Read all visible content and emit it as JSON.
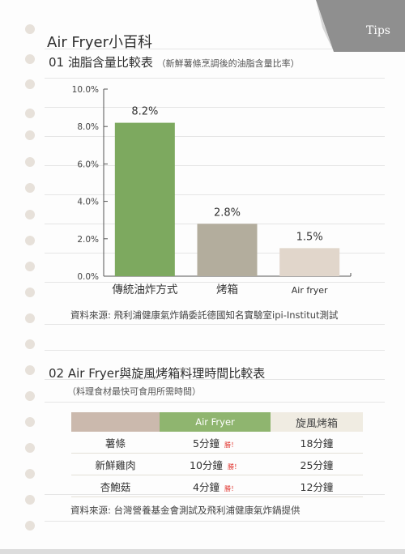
{
  "tips": "Tips",
  "title": "Air Fryer小百科",
  "section1": {
    "heading": "01 油脂含量比較表",
    "note": "（新鮮薯條烹調後的油脂含量比率）",
    "source": "資料來源: 飛利浦健康氣炸鍋委託德國知名實驗室ipi-Institut測試"
  },
  "section2": {
    "heading": "02 Air Fryer與旋風烤箱料理時間比較表",
    "note": "（料理食材最快可食用所需時間）",
    "source": "資料來源: 台灣營養基金會測試及飛利浦健康氣炸鍋提供"
  },
  "chart_data": {
    "type": "bar",
    "categories": [
      "傳統油炸方式",
      "烤箱",
      "Air fryer"
    ],
    "values": [
      8.2,
      2.8,
      1.5
    ],
    "value_labels": [
      "8.2%",
      "2.8%",
      "1.5%"
    ],
    "yticks": [
      "0.0%",
      "2.0%",
      "4.0%",
      "6.0%",
      "8.0%",
      "10.0%"
    ],
    "ylim": [
      0,
      10
    ],
    "colors": [
      "#7da95f",
      "#b3ad9d",
      "#e1d6cb"
    ],
    "grid": false
  },
  "table": {
    "headers": [
      "",
      "Air Fryer",
      "旋風烤箱"
    ],
    "win_label": "勝！",
    "rows": [
      {
        "item": "薯條",
        "airfryer": "5分鐘",
        "oven": "18分鐘"
      },
      {
        "item": "新鮮雞肉",
        "airfryer": "10分鐘",
        "oven": "25分鐘"
      },
      {
        "item": "杏鮑菇",
        "airfryer": "4分鐘",
        "oven": "12分鐘"
      }
    ]
  }
}
